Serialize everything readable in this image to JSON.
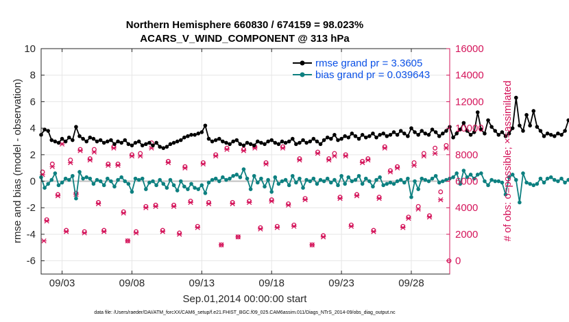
{
  "chart_data": {
    "type": "line",
    "title": "Northern Hemisphere 660830 / 674159 = 98.023%",
    "subtitle": "ACARS_V_WIND_COMPONENT @ 313 hPa",
    "xlabel": "Sep.01,2014 00:00:00 start",
    "ylabel": "rmse and bias (model - observation)",
    "y2label": "# of obs: o=possible; ×=assimilated",
    "footer": "data file: /Users/raeder/DAI/ATM_forcXX/CAM6_setup/f.e21.FHIST_BGC.f09_025.CAM6assim.011/Diags_NTrS_2014-09/obs_diag_output.nc",
    "x_day_range": [
      1.5,
      30.75
    ],
    "xticks": [
      {
        "day": 3,
        "label": "09/03"
      },
      {
        "day": 8,
        "label": "09/08"
      },
      {
        "day": 13,
        "label": "09/13"
      },
      {
        "day": 18,
        "label": "09/18"
      },
      {
        "day": 23,
        "label": "09/23"
      },
      {
        "day": 28,
        "label": "09/28"
      }
    ],
    "ylim": [
      -7,
      10
    ],
    "yticks": [
      -6,
      -4,
      -2,
      0,
      2,
      4,
      6,
      8,
      10
    ],
    "y2lim": [
      -1000,
      16000
    ],
    "y2ticks": [
      0,
      2000,
      4000,
      6000,
      8000,
      10000,
      12000,
      14000,
      16000
    ],
    "grid": true,
    "legend_position": "top-right",
    "x_start_day": 1.5,
    "x_step_days": 0.25,
    "colors": {
      "rmse": "#000000",
      "bias": "#0d8080",
      "obs": "#d4145a",
      "zero": "#bfbfbf",
      "legend_text": "#0a50e6",
      "right_axis": "#d4145a"
    },
    "series": [
      {
        "name": "rmse grand pr = 3.3605",
        "values": [
          3.5,
          3.9,
          3.8,
          3.1,
          3.0,
          2.9,
          3.2,
          3.0,
          3.3,
          3.1,
          4.1,
          3.4,
          3.2,
          3.0,
          3.3,
          3.2,
          3.0,
          3.1,
          2.9,
          3.0,
          3.1,
          2.8,
          3.0,
          2.9,
          3.1,
          2.8,
          2.7,
          2.9,
          3.0,
          2.7,
          2.8,
          2.9,
          2.7,
          2.9,
          2.6,
          2.5,
          2.6,
          2.8,
          2.9,
          3.0,
          3.1,
          3.3,
          3.4,
          3.5,
          3.5,
          3.6,
          3.7,
          4.2,
          3.2,
          3.0,
          3.1,
          3.2,
          3.0,
          2.9,
          2.8,
          3.0,
          3.1,
          2.8,
          2.7,
          2.9,
          2.8,
          2.7,
          3.0,
          2.9,
          2.8,
          3.0,
          3.1,
          2.9,
          2.8,
          3.0,
          2.9,
          3.0,
          3.2,
          2.8,
          2.9,
          3.1,
          2.9,
          3.0,
          3.2,
          3.0,
          2.8,
          3.1,
          3.3,
          3.2,
          3.5,
          3.1,
          3.2,
          3.4,
          3.3,
          3.6,
          3.4,
          3.2,
          3.5,
          3.3,
          3.4,
          3.6,
          3.3,
          3.5,
          3.6,
          3.4,
          3.5,
          3.7,
          3.5,
          3.8,
          3.6,
          3.4,
          4.0,
          3.7,
          3.5,
          3.8,
          3.6,
          3.5,
          3.9,
          3.7,
          3.4,
          3.6,
          3.8,
          4.1,
          3.3,
          3.6,
          3.9,
          4.4,
          3.8,
          3.5,
          3.7,
          5.2,
          3.9,
          3.6,
          4.6,
          4.1,
          3.8,
          3.5,
          3.7,
          3.4,
          3.6,
          4.0,
          6.3,
          4.2,
          3.8,
          5.0,
          4.2,
          5.3,
          4.1,
          3.8,
          3.4,
          3.6,
          3.5,
          3.4,
          3.6,
          3.5,
          3.8,
          4.6,
          4.4,
          3.7
        ]
      },
      {
        "name": "bias grand pr = 0.039643",
        "values": [
          0.3,
          -0.5,
          -0.2,
          0.1,
          0.6,
          -0.3,
          -0.1,
          0.2,
          0.1,
          0.4,
          -1.3,
          0.7,
          0.2,
          0.3,
          0.2,
          -0.2,
          0.1,
          0.0,
          -0.3,
          0.2,
          0.0,
          -0.4,
          0.1,
          0.3,
          0.0,
          -0.2,
          -0.8,
          0.2,
          0.1,
          0.2,
          -0.6,
          -0.1,
          0.0,
          -0.3,
          0.1,
          -0.2,
          -0.5,
          0.1,
          -0.3,
          -0.7,
          0.0,
          -0.4,
          -0.6,
          -0.2,
          -0.5,
          -0.6,
          -0.3,
          -0.9,
          -0.1,
          0.1,
          0.2,
          0.0,
          0.3,
          0.1,
          0.2,
          0.4,
          0.5,
          0.3,
          0.9,
          0.2,
          -0.6,
          0.4,
          -0.1,
          0.2,
          -0.4,
          0.1,
          -0.8,
          0.3,
          -0.2,
          0.0,
          0.1,
          -0.3,
          0.4,
          -0.1,
          0.2,
          -0.5,
          0.1,
          0.0,
          0.2,
          -0.2,
          0.1,
          0.0,
          0.2,
          -0.1,
          0.1,
          -0.3,
          0.4,
          -0.2,
          0.3,
          0.0,
          0.1,
          0.4,
          -0.2,
          0.2,
          0.0,
          -0.4,
          0.1,
          0.3,
          -0.3,
          -0.2,
          -0.1,
          -0.2,
          0.0,
          0.1,
          -0.1,
          0.2,
          -1.2,
          0.0,
          -0.6,
          0.2,
          0.1,
          0.0,
          0.2,
          0.4,
          -0.1,
          0.0,
          0.1,
          0.2,
          0.3,
          0.6,
          -0.2,
          0.8,
          0.3,
          0.5,
          0.2,
          0.5,
          0.6,
          0.0,
          -0.3,
          0.1,
          0.0,
          0.0,
          -0.1,
          -1.0,
          0.3,
          0.5,
          0.1,
          -1.6,
          0.6,
          -0.1,
          -0.2,
          -0.3,
          -0.2,
          0.2,
          -0.1,
          0.2,
          0.3,
          0.1,
          0.0,
          0.2,
          -0.1,
          0.1,
          -0.2,
          0.7
        ]
      }
    ],
    "obs_possible": [
      {
        "day": 1.6,
        "value": 6700
      },
      {
        "day": 1.9,
        "value": 3100
      },
      {
        "day": 2.3,
        "value": 7300
      },
      {
        "day": 2.7,
        "value": 5000
      },
      {
        "day": 3.0,
        "value": 9000
      },
      {
        "day": 3.3,
        "value": 2300
      },
      {
        "day": 3.6,
        "value": 7600
      },
      {
        "day": 4.0,
        "value": 5100
      },
      {
        "day": 4.3,
        "value": 8400
      },
      {
        "day": 4.6,
        "value": 2200
      },
      {
        "day": 5.0,
        "value": 7700
      },
      {
        "day": 5.3,
        "value": 8400
      },
      {
        "day": 5.6,
        "value": 4400
      },
      {
        "day": 6.0,
        "value": 2300
      },
      {
        "day": 6.3,
        "value": 7300
      },
      {
        "day": 6.7,
        "value": 8600
      },
      {
        "day": 7.0,
        "value": 7300
      },
      {
        "day": 7.4,
        "value": 3700
      },
      {
        "day": 7.7,
        "value": 1500
      },
      {
        "day": 8.0,
        "value": 8000
      },
      {
        "day": 8.3,
        "value": 2200
      },
      {
        "day": 8.6,
        "value": 8100
      },
      {
        "day": 9.0,
        "value": 4100
      },
      {
        "day": 9.4,
        "value": 8900
      },
      {
        "day": 9.7,
        "value": 4200
      },
      {
        "day": 10.2,
        "value": 2300
      },
      {
        "day": 10.6,
        "value": 7500
      },
      {
        "day": 11.0,
        "value": 4200
      },
      {
        "day": 11.4,
        "value": 2100
      },
      {
        "day": 11.8,
        "value": 7100
      },
      {
        "day": 12.2,
        "value": 4500
      },
      {
        "day": 12.7,
        "value": 2600
      },
      {
        "day": 13.1,
        "value": 7400
      },
      {
        "day": 13.5,
        "value": 4400
      },
      {
        "day": 14.0,
        "value": 8000
      },
      {
        "day": 14.4,
        "value": 1200
      },
      {
        "day": 14.8,
        "value": 8500
      },
      {
        "day": 15.2,
        "value": 4400
      },
      {
        "day": 15.6,
        "value": 1800
      },
      {
        "day": 16.0,
        "value": 8400
      },
      {
        "day": 16.4,
        "value": 4500
      },
      {
        "day": 16.8,
        "value": 8600
      },
      {
        "day": 17.2,
        "value": 2500
      },
      {
        "day": 17.6,
        "value": 7400
      },
      {
        "day": 18.0,
        "value": 4600
      },
      {
        "day": 18.4,
        "value": 2600
      },
      {
        "day": 18.8,
        "value": 8600
      },
      {
        "day": 19.2,
        "value": 4300
      },
      {
        "day": 19.6,
        "value": 2700
      },
      {
        "day": 20.0,
        "value": 7700
      },
      {
        "day": 20.4,
        "value": 4700
      },
      {
        "day": 20.9,
        "value": 1200
      },
      {
        "day": 21.3,
        "value": 8200
      },
      {
        "day": 21.7,
        "value": 1900
      },
      {
        "day": 22.1,
        "value": 7700
      },
      {
        "day": 22.5,
        "value": 8100
      },
      {
        "day": 22.9,
        "value": 4800
      },
      {
        "day": 23.3,
        "value": 8000
      },
      {
        "day": 23.7,
        "value": 2700
      },
      {
        "day": 24.1,
        "value": 5000
      },
      {
        "day": 24.5,
        "value": 7500
      },
      {
        "day": 24.9,
        "value": 7700
      },
      {
        "day": 25.3,
        "value": 2300
      },
      {
        "day": 25.7,
        "value": 4800
      },
      {
        "day": 26.1,
        "value": 8600
      },
      {
        "day": 26.5,
        "value": 6800
      },
      {
        "day": 27.0,
        "value": 7100
      },
      {
        "day": 27.4,
        "value": 2600
      },
      {
        "day": 27.8,
        "value": 3300
      },
      {
        "day": 28.2,
        "value": 7400
      },
      {
        "day": 28.5,
        "value": 4100
      },
      {
        "day": 28.9,
        "value": 8100
      },
      {
        "day": 29.3,
        "value": 3400
      },
      {
        "day": 29.7,
        "value": 8500
      },
      {
        "day": 30.1,
        "value": 5200
      },
      {
        "day": 30.5,
        "value": 8700
      },
      {
        "day": 30.7,
        "value": 0
      }
    ],
    "obs_assimilated": [
      {
        "day": 1.6,
        "value": 6500
      },
      {
        "day": 1.7,
        "value": 1500
      },
      {
        "day": 1.9,
        "value": 3000
      },
      {
        "day": 2.3,
        "value": 7100
      },
      {
        "day": 2.7,
        "value": 4900
      },
      {
        "day": 3.0,
        "value": 8800
      },
      {
        "day": 3.3,
        "value": 2200
      },
      {
        "day": 3.6,
        "value": 7400
      },
      {
        "day": 4.0,
        "value": 5000
      },
      {
        "day": 4.3,
        "value": 8300
      },
      {
        "day": 4.6,
        "value": 2100
      },
      {
        "day": 5.0,
        "value": 7600
      },
      {
        "day": 5.3,
        "value": 8200
      },
      {
        "day": 5.6,
        "value": 4300
      },
      {
        "day": 6.0,
        "value": 2200
      },
      {
        "day": 6.3,
        "value": 7200
      },
      {
        "day": 6.7,
        "value": 8500
      },
      {
        "day": 7.0,
        "value": 7200
      },
      {
        "day": 7.4,
        "value": 3600
      },
      {
        "day": 7.7,
        "value": 1500
      },
      {
        "day": 8.0,
        "value": 7900
      },
      {
        "day": 8.3,
        "value": 2100
      },
      {
        "day": 8.6,
        "value": 7900
      },
      {
        "day": 9.0,
        "value": 4000
      },
      {
        "day": 9.4,
        "value": 8500
      },
      {
        "day": 9.7,
        "value": 4100
      },
      {
        "day": 10.2,
        "value": 2200
      },
      {
        "day": 10.6,
        "value": 7400
      },
      {
        "day": 11.0,
        "value": 4100
      },
      {
        "day": 11.4,
        "value": 2000
      },
      {
        "day": 11.8,
        "value": 7000
      },
      {
        "day": 12.2,
        "value": 4400
      },
      {
        "day": 12.7,
        "value": 2500
      },
      {
        "day": 13.1,
        "value": 7300
      },
      {
        "day": 13.5,
        "value": 4300
      },
      {
        "day": 14.0,
        "value": 7900
      },
      {
        "day": 14.4,
        "value": 1200
      },
      {
        "day": 14.8,
        "value": 8400
      },
      {
        "day": 15.2,
        "value": 4300
      },
      {
        "day": 15.6,
        "value": 1800
      },
      {
        "day": 16.0,
        "value": 8300
      },
      {
        "day": 16.4,
        "value": 4400
      },
      {
        "day": 16.8,
        "value": 8500
      },
      {
        "day": 17.2,
        "value": 2400
      },
      {
        "day": 17.6,
        "value": 7300
      },
      {
        "day": 18.0,
        "value": 4500
      },
      {
        "day": 18.4,
        "value": 2500
      },
      {
        "day": 18.8,
        "value": 8500
      },
      {
        "day": 19.2,
        "value": 4200
      },
      {
        "day": 19.6,
        "value": 2600
      },
      {
        "day": 20.0,
        "value": 7600
      },
      {
        "day": 20.4,
        "value": 4600
      },
      {
        "day": 20.9,
        "value": 1200
      },
      {
        "day": 21.3,
        "value": 8100
      },
      {
        "day": 21.7,
        "value": 1800
      },
      {
        "day": 22.1,
        "value": 7600
      },
      {
        "day": 22.5,
        "value": 7900
      },
      {
        "day": 22.9,
        "value": 4700
      },
      {
        "day": 23.3,
        "value": 7900
      },
      {
        "day": 23.7,
        "value": 2600
      },
      {
        "day": 24.1,
        "value": 4900
      },
      {
        "day": 24.5,
        "value": 7400
      },
      {
        "day": 24.9,
        "value": 7600
      },
      {
        "day": 25.3,
        "value": 2200
      },
      {
        "day": 25.7,
        "value": 4700
      },
      {
        "day": 26.1,
        "value": 8500
      },
      {
        "day": 26.5,
        "value": 6700
      },
      {
        "day": 27.0,
        "value": 7000
      },
      {
        "day": 27.4,
        "value": 2500
      },
      {
        "day": 27.8,
        "value": 3200
      },
      {
        "day": 28.2,
        "value": 7200
      },
      {
        "day": 28.5,
        "value": 3900
      },
      {
        "day": 28.9,
        "value": 7900
      },
      {
        "day": 29.3,
        "value": 3300
      },
      {
        "day": 29.7,
        "value": 8100
      },
      {
        "day": 30.1,
        "value": 4600
      },
      {
        "day": 30.5,
        "value": 8500
      }
    ]
  }
}
